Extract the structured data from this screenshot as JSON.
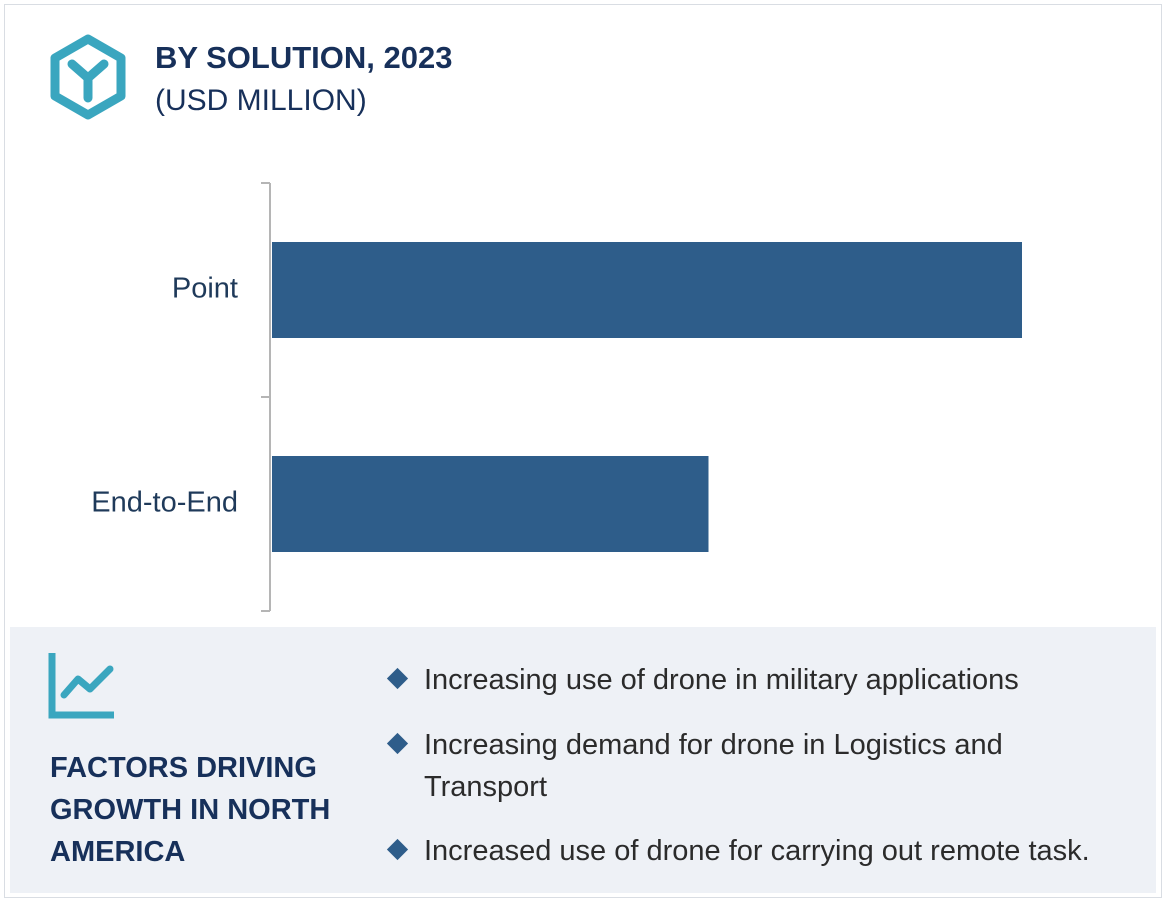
{
  "chart_data": {
    "type": "bar",
    "orientation": "horizontal",
    "title": "BY SOLUTION, 2023",
    "subtitle": "(USD MILLION)",
    "categories": [
      "Point",
      "End-to-End"
    ],
    "values": [
      100,
      58.2
    ],
    "color": "#2e5d8a"
  },
  "factors": {
    "title": "FACTORS DRIVING GROWTH IN NORTH AMERICA",
    "items": [
      "Increasing use of drone in military applications",
      "Increasing demand for drone in Logistics and Transport",
      "Increased use of drone for carrying out remote task."
    ]
  }
}
